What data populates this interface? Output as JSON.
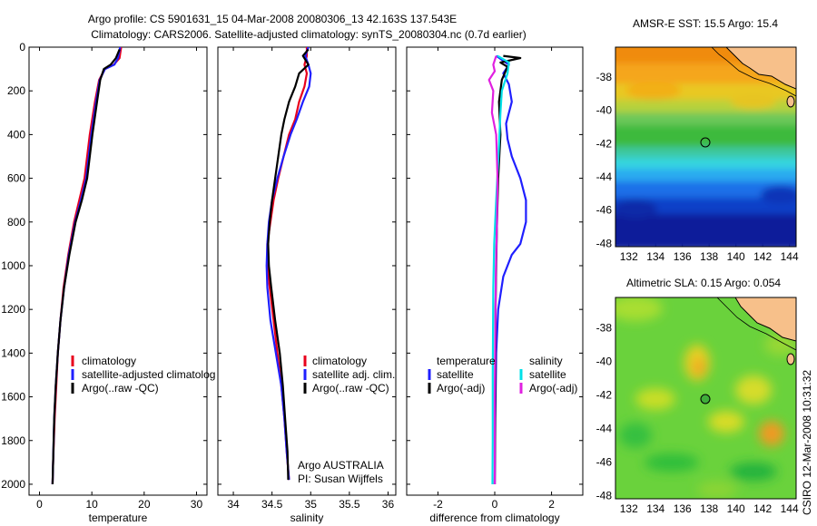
{
  "header": {
    "title_line1": "Argo profile: CS 5901631_15 04-Mar-2008 20080306_13 42.163S 137.543E",
    "title_line2": "Climatology: CARS2006. Satellite-adjusted climatology: synTS_20080304.nc (0.7d earlier)"
  },
  "side_note": "CSIRO 12-Mar-2008 10:31:32",
  "chart_data": [
    {
      "type": "line",
      "panel": "temperature",
      "xlabel": "temperature",
      "xlim": [
        -2,
        32
      ],
      "x_ticks": [
        "0",
        "10",
        "20",
        "30"
      ],
      "ylim": [
        2050,
        0
      ],
      "y_ticks": [
        "0",
        "200",
        "400",
        "600",
        "800",
        "1000",
        "1200",
        "1400",
        "1600",
        "1800",
        "2000"
      ],
      "legend": [
        "climatology",
        "satellite-adjusted climatolog",
        "Argo(..raw -QC)"
      ],
      "series": [
        {
          "name": "climatology",
          "color": "#e8001c",
          "x": [
            15.6,
            15.3,
            14.2,
            12.5,
            11.4,
            10.6,
            9.6,
            8.6,
            7.6,
            6.6,
            5.5,
            4.6,
            4.0,
            3.5,
            3.2,
            2.9,
            2.6,
            2.5
          ],
          "y": [
            0,
            50,
            80,
            100,
            150,
            250,
            400,
            600,
            700,
            800,
            950,
            1100,
            1250,
            1400,
            1550,
            1700,
            1900,
            2000
          ]
        },
        {
          "name": "satellite-adjusted climatolog",
          "color": "#1f1fff",
          "x": [
            15.4,
            15.0,
            14.3,
            12.5,
            11.5,
            10.8,
            9.9,
            8.9,
            7.9,
            6.8,
            5.6,
            4.7,
            4.0,
            3.5,
            3.1,
            2.8,
            2.6,
            2.5
          ],
          "y": [
            0,
            50,
            80,
            100,
            150,
            250,
            400,
            600,
            700,
            800,
            950,
            1100,
            1250,
            1400,
            1550,
            1700,
            1900,
            2000
          ]
        },
        {
          "name": "Argo(..raw -QC)",
          "color": "#000000",
          "x": [
            15.3,
            14.6,
            13.6,
            12.3,
            11.6,
            11.0,
            10.1,
            9.1,
            8.1,
            6.9,
            5.7,
            4.7,
            4.0,
            3.5,
            3.1,
            2.8,
            2.6,
            2.5
          ],
          "y": [
            10,
            50,
            80,
            100,
            150,
            250,
            400,
            600,
            700,
            800,
            950,
            1100,
            1250,
            1400,
            1550,
            1700,
            1900,
            2000
          ]
        }
      ]
    },
    {
      "type": "line",
      "panel": "salinity",
      "xlabel": "salinity",
      "xlim": [
        33.8,
        36.1
      ],
      "x_ticks": [
        "34",
        "34.5",
        "35",
        "35.5",
        "36"
      ],
      "ylim": [
        2050,
        0
      ],
      "legend": [
        "climatology",
        "satellite adj. clim.",
        "Argo(..raw -QC)"
      ],
      "annotation": [
        "Argo AUSTRALIA",
        "PI: Susan Wijffels"
      ],
      "series": [
        {
          "name": "climatology",
          "color": "#e8001c",
          "x": [
            34.95,
            34.95,
            34.92,
            34.95,
            34.92,
            34.85,
            34.8,
            34.72,
            34.65,
            34.58,
            34.52,
            34.48,
            34.44,
            34.44,
            34.47,
            34.52,
            34.57,
            34.62,
            34.66,
            34.69,
            34.72
          ],
          "y": [
            0,
            40,
            80,
            120,
            180,
            250,
            330,
            400,
            500,
            600,
            700,
            800,
            900,
            1000,
            1100,
            1250,
            1400,
            1550,
            1700,
            1850,
            1980
          ]
        },
        {
          "name": "satellite adj. clim.",
          "color": "#1f1fff",
          "x": [
            34.97,
            34.93,
            34.97,
            35.0,
            34.98,
            34.9,
            34.82,
            34.74,
            34.65,
            34.57,
            34.5,
            34.46,
            34.44,
            34.43,
            34.44,
            34.48,
            34.55,
            34.62,
            34.66,
            34.69,
            34.72
          ],
          "y": [
            0,
            40,
            80,
            120,
            180,
            250,
            330,
            400,
            500,
            600,
            700,
            800,
            900,
            1000,
            1100,
            1250,
            1400,
            1550,
            1700,
            1850,
            1980
          ]
        },
        {
          "name": "Argo(..raw -QC)",
          "color": "#000000",
          "x": [
            34.97,
            34.9,
            34.97,
            34.85,
            34.8,
            34.72,
            34.66,
            34.62,
            34.58,
            34.54,
            34.5,
            34.47,
            34.45,
            34.46,
            34.49,
            34.54,
            34.6,
            34.64,
            34.67,
            34.7,
            34.71
          ],
          "y": [
            10,
            40,
            80,
            120,
            180,
            250,
            330,
            400,
            500,
            600,
            700,
            800,
            900,
            1000,
            1100,
            1250,
            1400,
            1550,
            1700,
            1850,
            1980
          ]
        }
      ]
    },
    {
      "type": "line",
      "panel": "difference",
      "xlabel": "difference from climatology",
      "xlim": [
        -3.1,
        3.1
      ],
      "x_ticks": [
        "-2",
        "0",
        "2"
      ],
      "ylim": [
        2050,
        0
      ],
      "legend_left": [
        "temperature",
        "satellite",
        "Argo(-adj)"
      ],
      "legend_right": [
        "salinity",
        "satellite",
        "Argo(-adj)"
      ],
      "series": [
        {
          "name": "temperature satellite",
          "color": "#1f1fff",
          "x": [
            0.05,
            0.5,
            0.3,
            0.5,
            0.6,
            0.4,
            0.45,
            0.6,
            0.9,
            1.1,
            1.1,
            0.9,
            0.6,
            0.3,
            0.12,
            0.05,
            0.02,
            0.0
          ],
          "y": [
            40,
            80,
            120,
            170,
            250,
            350,
            420,
            500,
            600,
            700,
            800,
            900,
            950,
            1050,
            1200,
            1400,
            1700,
            2000
          ]
        },
        {
          "name": "temperature Argo(-adj)",
          "color": "#000000",
          "x": [
            0.3,
            0.9,
            0.2,
            0.45,
            0.25,
            0.15,
            0.2,
            0.12,
            0.08,
            0.05,
            0.03,
            0.02,
            0.01,
            0.0
          ],
          "y": [
            40,
            50,
            70,
            90,
            150,
            250,
            400,
            600,
            800,
            1000,
            1200,
            1500,
            1800,
            2000
          ]
        },
        {
          "name": "salinity satellite",
          "color": "#00e0e8",
          "x": [
            0.1,
            0.5,
            0.45,
            0.25,
            0.2,
            0.15,
            0.05,
            -0.02,
            -0.05,
            -0.06,
            -0.07,
            -0.07,
            -0.08
          ],
          "y": [
            40,
            70,
            120,
            200,
            300,
            450,
            700,
            900,
            1100,
            1300,
            1500,
            1800,
            2000
          ]
        },
        {
          "name": "salinity Argo(-adj)",
          "color": "#e020e0",
          "x": [
            0.05,
            -0.05,
            0.0,
            -0.2,
            -0.05,
            -0.1,
            0.05,
            0.1,
            0.08,
            0.04,
            0.02,
            0.0,
            0.0
          ],
          "y": [
            40,
            80,
            110,
            150,
            200,
            300,
            400,
            600,
            800,
            1000,
            1300,
            1600,
            2000
          ]
        }
      ]
    },
    {
      "type": "heatmap",
      "panel": "AMSR-E SST map",
      "title": "AMSR-E SST: 15.5 Argo: 15.4",
      "xlim": [
        131,
        144.5
      ],
      "ylim": [
        -48.2,
        -36.2
      ],
      "x_ticks": [
        "132",
        "134",
        "136",
        "138",
        "140",
        "142",
        "144"
      ],
      "y_ticks": [
        "-38",
        "-40",
        "-42",
        "-44",
        "-46",
        "-48"
      ],
      "marker": {
        "lon": 137.543,
        "lat": -42.163
      },
      "land_color": "#f7c08a"
    },
    {
      "type": "heatmap",
      "panel": "Altimetric SLA map",
      "title": "Altimetric SLA: 0.15 Argo: 0.054",
      "xlim": [
        131,
        144.5
      ],
      "ylim": [
        -48.2,
        -36.2
      ],
      "x_ticks": [
        "132",
        "134",
        "136",
        "138",
        "140",
        "142",
        "144"
      ],
      "y_ticks": [
        "-38",
        "-40",
        "-42",
        "-44",
        "-46",
        "-48"
      ],
      "marker": {
        "lon": 137.543,
        "lat": -42.163
      },
      "land_color": "#f7c08a"
    }
  ]
}
